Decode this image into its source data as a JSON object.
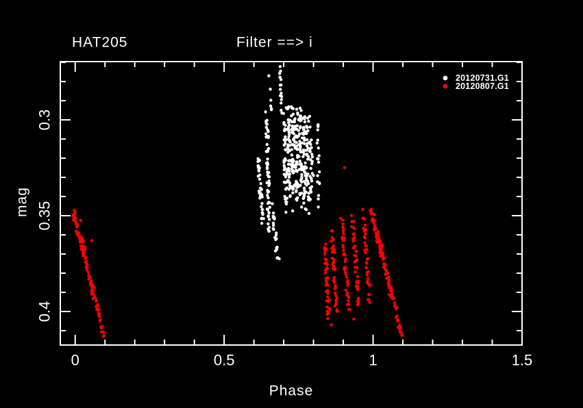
{
  "header": {
    "object_name": "HAT205",
    "filter_label": "Filter ==> i"
  },
  "colors": {
    "background": "#000000",
    "foreground": "#ffffff",
    "series1": "#ffffff",
    "series2": "#ff0000"
  },
  "axes": {
    "x": {
      "label": "Phase",
      "min": -0.05,
      "max": 1.5,
      "minor_step": 0.1,
      "major_ticks": [
        {
          "value": 0.0,
          "label": "0"
        },
        {
          "value": 0.5,
          "label": "0.5"
        },
        {
          "value": 1.0,
          "label": "1"
        },
        {
          "value": 1.5,
          "label": "1.5"
        }
      ]
    },
    "y": {
      "label": "mag",
      "min": 0.2696,
      "max": 0.4175,
      "inverted_magnitude_axis": true,
      "minor_step": 0.01,
      "major_ticks": [
        {
          "value": 0.3,
          "label": "0.3"
        },
        {
          "value": 0.35,
          "label": "0.35"
        },
        {
          "value": 0.4,
          "label": "0.4"
        }
      ]
    }
  },
  "legend": {
    "position": "top-right-inside",
    "entries": [
      {
        "label": "20120731.G1",
        "color": "#ffffff",
        "marker": "filled-circle"
      },
      {
        "label": "20120807.G1",
        "color": "#ff0000",
        "marker": "filled-circle"
      }
    ]
  },
  "chart_data": {
    "type": "scatter",
    "title": "HAT205",
    "subtitle": "Filter ==> i",
    "xlabel": "Phase",
    "ylabel": "mag",
    "xlim": [
      -0.05,
      1.5
    ],
    "ylim": [
      0.4175,
      0.2696
    ],
    "grid": false,
    "legend_position": "top-right-inside",
    "series": [
      {
        "name": "20120731.G1",
        "color": "#ffffff",
        "marker": "filled-circle",
        "phase_range": [
          0.61,
          0.82
        ],
        "mag_range": [
          0.272,
          0.375
        ],
        "description_strands": [
          {
            "p0": 0.687,
            "p1": 0.693,
            "m0": 0.2715,
            "m1": 0.295,
            "n": 14,
            "jp": 0.0025,
            "jm": 0.0015
          },
          {
            "p0": 0.656,
            "p1": 0.66,
            "m0": 0.29,
            "m1": 0.2955,
            "n": 4,
            "jp": 0.002,
            "jm": 0.001
          },
          {
            "p0": 0.643,
            "p1": 0.651,
            "m0": 0.298,
            "m1": 0.359,
            "n": 55,
            "jp": 0.0045,
            "jm": 0.003
          },
          {
            "p0": 0.614,
            "p1": 0.629,
            "m0": 0.32,
            "m1": 0.353,
            "n": 35,
            "jp": 0.005,
            "jm": 0.0035
          },
          {
            "p0": 0.704,
            "p1": 0.707,
            "m0": 0.2995,
            "m1": 0.345,
            "n": 45,
            "jp": 0.005,
            "jm": 0.004
          },
          {
            "p0": 0.717,
            "p1": 0.719,
            "m0": 0.2975,
            "m1": 0.34,
            "n": 45,
            "jp": 0.005,
            "jm": 0.004
          },
          {
            "p0": 0.729,
            "p1": 0.731,
            "m0": 0.296,
            "m1": 0.338,
            "n": 40,
            "jp": 0.005,
            "jm": 0.004
          },
          {
            "p0": 0.741,
            "p1": 0.743,
            "m0": 0.298,
            "m1": 0.342,
            "n": 45,
            "jp": 0.005,
            "jm": 0.004
          },
          {
            "p0": 0.754,
            "p1": 0.756,
            "m0": 0.296,
            "m1": 0.34,
            "n": 40,
            "jp": 0.005,
            "jm": 0.004
          },
          {
            "p0": 0.767,
            "p1": 0.769,
            "m0": 0.298,
            "m1": 0.344,
            "n": 40,
            "jp": 0.005,
            "jm": 0.004
          },
          {
            "p0": 0.779,
            "p1": 0.781,
            "m0": 0.302,
            "m1": 0.346,
            "n": 35,
            "jp": 0.005,
            "jm": 0.004
          },
          {
            "p0": 0.791,
            "p1": 0.793,
            "m0": 0.306,
            "m1": 0.34,
            "n": 25,
            "jp": 0.0045,
            "jm": 0.004
          },
          {
            "p0": 0.8145,
            "p1": 0.8175,
            "m0": 0.3005,
            "m1": 0.343,
            "n": 18,
            "jp": 0.004,
            "jm": 0.004
          },
          {
            "p0": 0.7,
            "p1": 0.79,
            "m0": 0.294,
            "m1": 0.3,
            "n": 18,
            "jp": 0.01,
            "jm": 0.0025
          },
          {
            "p0": 0.663,
            "p1": 0.677,
            "m0": 0.345,
            "m1": 0.372,
            "n": 22,
            "jp": 0.005,
            "jm": 0.003
          }
        ],
        "extra_points": [
          [
            0.73,
            0.3475
          ],
          [
            0.685,
            0.3725
          ],
          [
            0.76,
            0.3455
          ],
          [
            0.8,
            0.329
          ],
          [
            0.772,
            0.338
          ],
          [
            0.815,
            0.303
          ],
          [
            0.65,
            0.277
          ],
          [
            0.655,
            0.284
          ]
        ]
      },
      {
        "name": "20120807.G1",
        "color": "#ff0000",
        "marker": "filled-circle",
        "phase_range": [
          -0.01,
          1.1
        ],
        "mag_range": [
          0.325,
          0.4135
        ],
        "description_strands": [
          {
            "p0": -0.008,
            "p1": 0.03,
            "m0": 0.3475,
            "m1": 0.372,
            "n": 42,
            "jp": 0.004,
            "jm": 0.0022
          },
          {
            "p0": 0.02,
            "p1": 0.06,
            "m0": 0.36,
            "m1": 0.392,
            "n": 40,
            "jp": 0.004,
            "jm": 0.0022
          },
          {
            "p0": 0.055,
            "p1": 0.097,
            "m0": 0.385,
            "m1": 0.4135,
            "n": 34,
            "jp": 0.0035,
            "jm": 0.0022
          },
          {
            "p0": 0.992,
            "p1": 1.03,
            "m0": 0.3475,
            "m1": 0.372,
            "n": 42,
            "jp": 0.004,
            "jm": 0.0022
          },
          {
            "p0": 1.02,
            "p1": 1.06,
            "m0": 0.36,
            "m1": 0.392,
            "n": 40,
            "jp": 0.004,
            "jm": 0.0022
          },
          {
            "p0": 1.055,
            "p1": 1.097,
            "m0": 0.385,
            "m1": 0.4135,
            "n": 34,
            "jp": 0.0035,
            "jm": 0.0022
          },
          {
            "p0": 0.838,
            "p1": 0.852,
            "m0": 0.365,
            "m1": 0.403,
            "n": 38,
            "jp": 0.0045,
            "jm": 0.0025
          },
          {
            "p0": 0.862,
            "p1": 0.878,
            "m0": 0.358,
            "m1": 0.4,
            "n": 42,
            "jp": 0.0045,
            "jm": 0.0025
          },
          {
            "p0": 0.895,
            "p1": 0.918,
            "m0": 0.352,
            "m1": 0.4,
            "n": 42,
            "jp": 0.0045,
            "jm": 0.0025
          },
          {
            "p0": 0.93,
            "p1": 0.952,
            "m0": 0.35,
            "m1": 0.398,
            "n": 40,
            "jp": 0.0045,
            "jm": 0.0025
          },
          {
            "p0": 0.968,
            "p1": 0.988,
            "m0": 0.3475,
            "m1": 0.395,
            "n": 38,
            "jp": 0.0045,
            "jm": 0.0025
          }
        ],
        "extra_points": [
          [
            0.904,
            0.325
          ],
          [
            0.055,
            0.363
          ],
          [
            0.018,
            0.3525
          ],
          [
            1.098,
            0.4125
          ],
          [
            0.0,
            0.348
          ],
          [
            0.86,
            0.407
          ],
          [
            0.935,
            0.404
          ],
          [
            1.005,
            0.3495
          ]
        ]
      }
    ]
  }
}
